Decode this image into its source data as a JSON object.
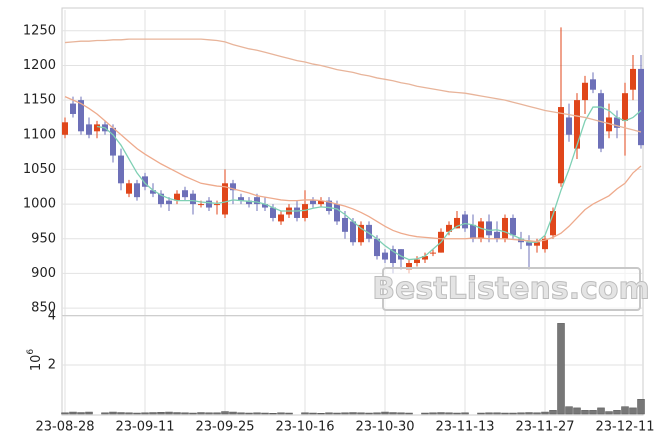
{
  "chart_data": [
    {
      "type": "candlestick",
      "categories": [
        "23-08-28",
        null,
        null,
        null,
        null,
        null,
        null,
        null,
        null,
        null,
        "23-09-11",
        null,
        null,
        null,
        null,
        null,
        null,
        null,
        null,
        null,
        "23-09-25",
        null,
        null,
        null,
        null,
        null,
        null,
        null,
        null,
        null,
        "23-10-16",
        null,
        null,
        null,
        null,
        null,
        null,
        null,
        null,
        null,
        "23-10-30",
        null,
        null,
        null,
        null,
        null,
        null,
        null,
        null,
        null,
        "23-11-13",
        null,
        null,
        null,
        null,
        null,
        null,
        null,
        null,
        null,
        "23-11-27",
        null,
        null,
        null,
        null,
        null,
        null,
        null,
        null,
        null,
        "23-12-11",
        null,
        null
      ],
      "open": [
        1100,
        1145,
        1150,
        1115,
        1105,
        1115,
        1110,
        1070,
        1015,
        1030,
        1040,
        1020,
        1015,
        1005,
        1005,
        1020,
        1015,
        1000,
        1005,
        1000,
        985,
        1030,
        1010,
        1005,
        1010,
        1000,
        995,
        975,
        985,
        995,
        980,
        1005,
        1000,
        1005,
        1000,
        980,
        975,
        945,
        970,
        950,
        930,
        935,
        935,
        905,
        915,
        920,
        930,
        930,
        960,
        965,
        985,
        970,
        950,
        975,
        960,
        950,
        980,
        950,
        945,
        940,
        935,
        955,
        1030,
        1125,
        1080,
        1150,
        1180,
        1160,
        1105,
        1125,
        1120,
        1165,
        1195
      ],
      "high": [
        1125,
        1155,
        1155,
        1125,
        1120,
        1120,
        1115,
        1080,
        1035,
        1035,
        1045,
        1030,
        1020,
        1010,
        1020,
        1025,
        1020,
        1005,
        1010,
        1005,
        1050,
        1035,
        1015,
        1010,
        1015,
        1010,
        1000,
        990,
        1000,
        1005,
        1020,
        1010,
        1010,
        1010,
        1005,
        990,
        980,
        975,
        975,
        955,
        935,
        940,
        935,
        920,
        925,
        930,
        935,
        965,
        975,
        990,
        990,
        985,
        980,
        985,
        975,
        985,
        985,
        960,
        955,
        950,
        955,
        995,
        1255,
        1145,
        1160,
        1185,
        1190,
        1165,
        1145,
        1135,
        1175,
        1215,
        1215
      ],
      "low": [
        1095,
        1125,
        1100,
        1095,
        1095,
        1100,
        1060,
        1020,
        1010,
        1005,
        1020,
        1010,
        995,
        990,
        1000,
        1005,
        985,
        995,
        990,
        985,
        980,
        1000,
        1000,
        995,
        990,
        990,
        975,
        970,
        980,
        975,
        975,
        995,
        995,
        985,
        970,
        950,
        940,
        940,
        945,
        920,
        915,
        900,
        905,
        900,
        910,
        915,
        925,
        930,
        955,
        965,
        960,
        945,
        945,
        945,
        945,
        945,
        950,
        935,
        905,
        930,
        930,
        950,
        1025,
        1090,
        1065,
        1130,
        1160,
        1075,
        1095,
        1095,
        1070,
        1150,
        1080
      ],
      "close": [
        1118,
        1130,
        1105,
        1100,
        1115,
        1105,
        1070,
        1030,
        1030,
        1010,
        1025,
        1015,
        1000,
        1000,
        1015,
        1010,
        1000,
        1000,
        995,
        1000,
        1030,
        1020,
        1005,
        1000,
        1000,
        995,
        980,
        985,
        995,
        980,
        1000,
        1000,
        1005,
        990,
        975,
        960,
        945,
        970,
        950,
        925,
        920,
        915,
        920,
        915,
        920,
        925,
        930,
        960,
        970,
        980,
        965,
        950,
        975,
        955,
        950,
        980,
        955,
        945,
        940,
        945,
        950,
        990,
        1140,
        1100,
        1150,
        1175,
        1165,
        1080,
        1125,
        1110,
        1160,
        1195,
        1085
      ],
      "up_color": "#e0461a",
      "down_color": "#6d70b8",
      "series": [
        {
          "color": "#7fd0b4",
          "values": [
            null,
            null,
            null,
            null,
            1112,
            1110,
            1100,
            1085,
            1065,
            1045,
            1030,
            1020,
            1013,
            1008,
            1005,
            1005,
            1005,
            1003,
            1002,
            1001,
            1003,
            1006,
            1005,
            1004,
            1003,
            1000,
            995,
            990,
            990,
            990,
            991,
            994,
            996,
            995,
            993,
            985,
            975,
            965,
            958,
            950,
            940,
            932,
            925,
            920,
            921,
            925,
            935,
            945,
            960,
            968,
            972,
            970,
            965,
            962,
            963,
            960,
            955,
            950,
            945,
            945,
            955,
            985,
            1020,
            1050,
            1085,
            1120,
            1140,
            1140,
            1135,
            1125,
            1120,
            1125,
            1135
          ]
        },
        {
          "color": "#eeaa8c",
          "values": [
            1155,
            1150,
            1145,
            1138,
            1130,
            1120,
            1110,
            1100,
            1090,
            1080,
            1072,
            1065,
            1058,
            1052,
            1046,
            1040,
            1035,
            1030,
            1028,
            1026,
            1025,
            1022,
            1019,
            1016,
            1012,
            1010,
            1008,
            1006,
            1005,
            1005,
            1006,
            1006,
            1005,
            1003,
            1000,
            997,
            993,
            988,
            982,
            975,
            968,
            962,
            958,
            955,
            953,
            952,
            951,
            950,
            950,
            950,
            950,
            951,
            951,
            950,
            950,
            950,
            949,
            948,
            947,
            946,
            948,
            952,
            958,
            968,
            980,
            992,
            1000,
            1006,
            1012,
            1022,
            1030,
            1045,
            1055
          ]
        },
        {
          "color": "#e8b49a",
          "values": [
            1233,
            1234,
            1235,
            1235,
            1236,
            1236,
            1237,
            1237,
            1238,
            1238,
            1238,
            1238,
            1238,
            1238,
            1238,
            1238,
            1238,
            1238,
            1237,
            1236,
            1234,
            1230,
            1227,
            1224,
            1222,
            1219,
            1216,
            1213,
            1210,
            1207,
            1205,
            1202,
            1200,
            1197,
            1194,
            1192,
            1190,
            1187,
            1185,
            1182,
            1180,
            1178,
            1175,
            1173,
            1170,
            1168,
            1166,
            1164,
            1162,
            1161,
            1160,
            1158,
            1156,
            1154,
            1152,
            1150,
            1147,
            1144,
            1141,
            1138,
            1135,
            1133,
            1131,
            1129,
            1127,
            1125,
            1122,
            1119,
            1116,
            1113,
            1110,
            1107,
            1104
          ]
        }
      ],
      "ylim": [
        840,
        1280
      ],
      "yticks": [
        850,
        900,
        950,
        1000,
        1050,
        1100,
        1150,
        1200,
        1250
      ],
      "grid": true,
      "watermark": "BestListens.com"
    },
    {
      "type": "bar",
      "y_label": "10",
      "y_label_exponent": "6",
      "color": "#777777",
      "values": [
        0.05,
        0.08,
        0.06,
        0.08,
        null,
        0.05,
        0.08,
        0.06,
        0.05,
        0.04,
        0.05,
        0.06,
        0.07,
        0.08,
        0.06,
        0.05,
        0.04,
        0.06,
        0.05,
        0.05,
        0.1,
        0.08,
        0.05,
        0.04,
        0.05,
        0.04,
        0.03,
        0.05,
        0.04,
        null,
        0.05,
        0.04,
        0.03,
        0.05,
        0.04,
        0.05,
        0.06,
        0.05,
        0.04,
        0.05,
        0.08,
        0.06,
        0.05,
        0.04,
        null,
        0.04,
        0.05,
        0.06,
        0.05,
        0.04,
        0.05,
        null,
        0.04,
        0.05,
        0.05,
        0.04,
        0.04,
        0.05,
        0.06,
        0.05,
        0.08,
        0.15,
        3.7,
        0.3,
        0.25,
        0.15,
        0.15,
        0.25,
        0.1,
        0.15,
        0.3,
        0.25,
        0.6
      ],
      "ylim": [
        0,
        4
      ],
      "yticks": [
        2,
        4
      ],
      "grid": true
    }
  ]
}
